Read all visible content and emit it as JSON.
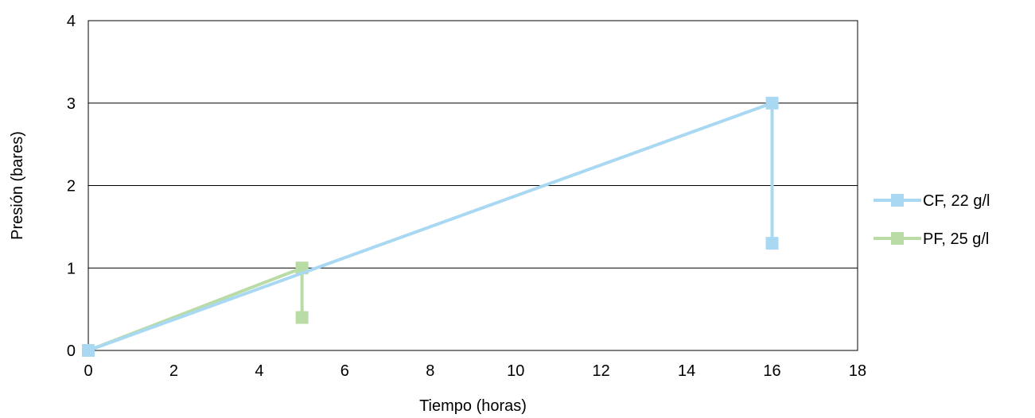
{
  "chart_data": {
    "type": "line",
    "xlabel": "Tiempo (horas)",
    "ylabel": "Presión (bares)",
    "xlim": [
      0,
      18
    ],
    "ylim": [
      0,
      4
    ],
    "xticks": [
      "0",
      "2",
      "4",
      "6",
      "8",
      "10",
      "12",
      "14",
      "16",
      "18"
    ],
    "yticks": [
      "0",
      "1",
      "2",
      "3",
      "4"
    ],
    "grid": "horizontal",
    "legend_position": "right",
    "series": [
      {
        "name": "CF, 22 g/l",
        "color": "#A9D8F2",
        "points": [
          [
            0,
            0
          ],
          [
            16,
            3
          ],
          [
            16,
            1.3
          ]
        ]
      },
      {
        "name": "PF, 25 g/l",
        "color": "#B9DBA6",
        "points": [
          [
            0,
            0
          ],
          [
            5,
            1
          ],
          [
            5,
            0.4
          ]
        ]
      }
    ]
  }
}
